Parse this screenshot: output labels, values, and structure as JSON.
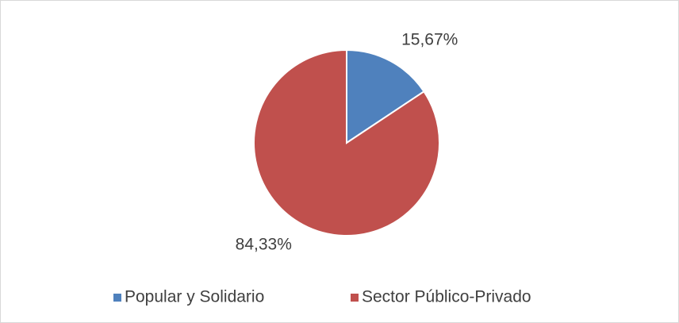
{
  "chart_data": {
    "type": "pie",
    "categories": [
      "Popular y Solidario",
      "Sector Público-Privado"
    ],
    "values": [
      15.67,
      84.33
    ],
    "value_labels": [
      "15,67%",
      "84,33%"
    ],
    "colors": [
      "#4f81bd",
      "#c0504d"
    ],
    "legend": "bottom"
  }
}
